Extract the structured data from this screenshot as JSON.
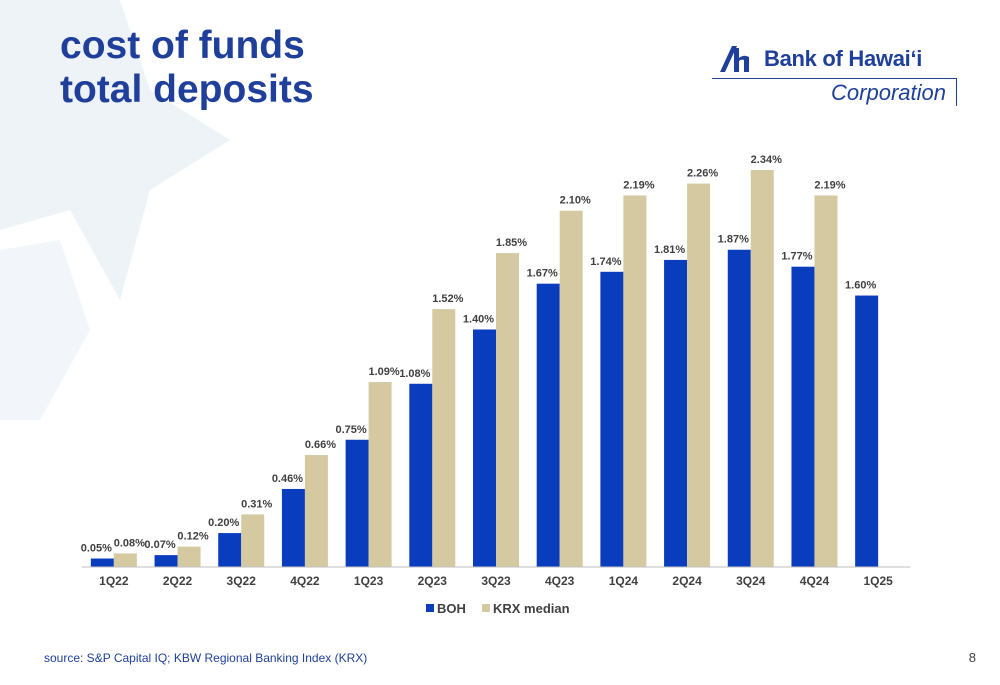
{
  "slide": {
    "title_line1": "cost of funds",
    "title_line2": "total deposits",
    "source": "source: S&P Capital IQ; KBW Regional Banking Index (KRX)",
    "page_number": "8"
  },
  "logo": {
    "name": "Bank of Hawaiʻi",
    "subtitle": "Corporation",
    "icon": "bank-of-hawaii-mark-icon"
  },
  "colors": {
    "title": "#1f3f9a",
    "boh": "#0a3dbd",
    "krx": "#d4c9a1",
    "axis": "#bfbfbf",
    "label": "#404040",
    "background_star": "#eef3f8"
  },
  "chart_data": {
    "type": "bar",
    "categories": [
      "1Q22",
      "2Q22",
      "3Q22",
      "4Q22",
      "1Q23",
      "2Q23",
      "3Q23",
      "4Q23",
      "1Q24",
      "2Q24",
      "3Q24",
      "4Q24",
      "1Q25"
    ],
    "series": [
      {
        "name": "BOH",
        "values": [
          0.05,
          0.07,
          0.2,
          0.46,
          0.75,
          1.08,
          1.4,
          1.67,
          1.74,
          1.81,
          1.87,
          1.77,
          1.6
        ],
        "labels": [
          "0.05%",
          "0.07%",
          "0.20%",
          "0.46%",
          "0.75%",
          "1.08%",
          "1.40%",
          "1.67%",
          "1.74%",
          "1.81%",
          "1.87%",
          "1.77%",
          "1.60%"
        ]
      },
      {
        "name": "KRX median",
        "values": [
          0.08,
          0.12,
          0.31,
          0.66,
          1.09,
          1.52,
          1.85,
          2.1,
          2.19,
          2.26,
          2.34,
          2.19,
          null
        ],
        "labels": [
          "0.08%",
          "0.12%",
          "0.31%",
          "0.66%",
          "1.09%",
          "1.52%",
          "1.85%",
          "2.10%",
          "2.19%",
          "2.26%",
          "2.34%",
          "2.19%",
          ""
        ]
      }
    ],
    "ylim": [
      0,
      2.5
    ],
    "grid": false,
    "legend_position": "bottom-center"
  }
}
